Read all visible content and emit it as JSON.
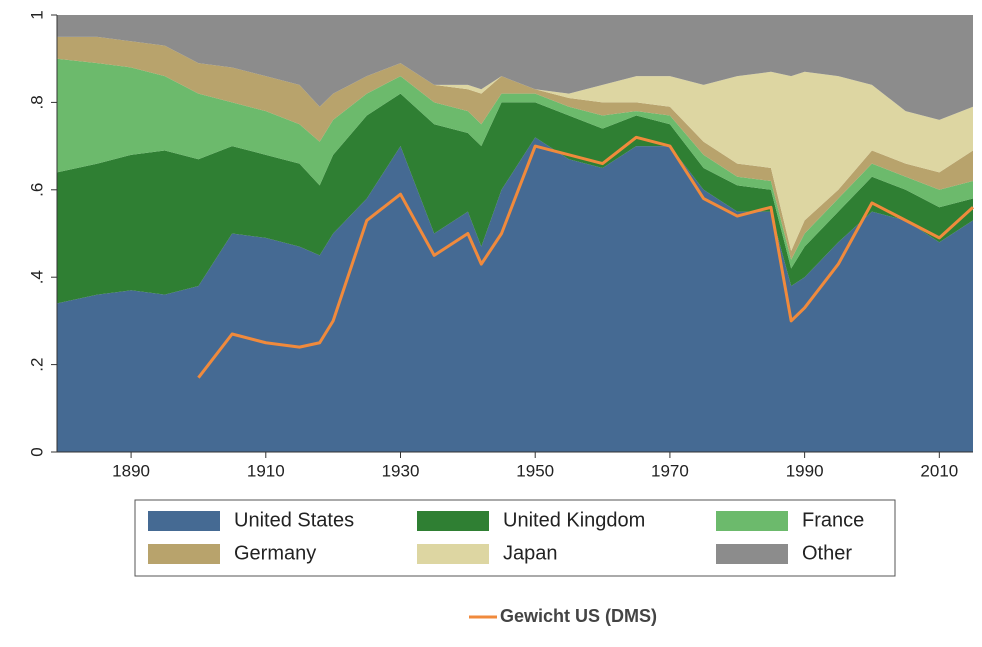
{
  "chart_data": {
    "type": "stacked-area",
    "x": [
      1879,
      1885,
      1890,
      1895,
      1900,
      1905,
      1910,
      1915,
      1918,
      1920,
      1925,
      1930,
      1935,
      1940,
      1942,
      1945,
      1950,
      1955,
      1960,
      1965,
      1970,
      1975,
      1980,
      1985,
      1988,
      1990,
      1995,
      2000,
      2005,
      2010,
      2015
    ],
    "xlim": [
      1879,
      2015
    ],
    "xticks": [
      1890,
      1910,
      1930,
      1950,
      1970,
      1990,
      2010
    ],
    "ylim": [
      0,
      1
    ],
    "yticks": [
      0,
      {
        "value": 0.2,
        "label": ".2"
      },
      {
        "value": 0.4,
        "label": ".4"
      },
      {
        "value": 0.6,
        "label": ".6"
      },
      {
        "value": 0.8,
        "label": ".8"
      },
      1
    ],
    "series": [
      {
        "name": "United States",
        "color": "#456a93",
        "values": [
          0.34,
          0.36,
          0.37,
          0.36,
          0.38,
          0.5,
          0.49,
          0.47,
          0.45,
          0.5,
          0.58,
          0.7,
          0.5,
          0.55,
          0.47,
          0.6,
          0.72,
          0.67,
          0.65,
          0.7,
          0.7,
          0.6,
          0.55,
          0.55,
          0.38,
          0.4,
          0.48,
          0.55,
          0.53,
          0.48,
          0.53
        ]
      },
      {
        "name": "United Kingdom",
        "color": "#2f7f33",
        "values": [
          0.3,
          0.3,
          0.31,
          0.33,
          0.29,
          0.2,
          0.19,
          0.19,
          0.16,
          0.18,
          0.19,
          0.12,
          0.25,
          0.18,
          0.23,
          0.2,
          0.08,
          0.1,
          0.09,
          0.07,
          0.05,
          0.05,
          0.06,
          0.05,
          0.04,
          0.07,
          0.07,
          0.08,
          0.07,
          0.08,
          0.05
        ]
      },
      {
        "name": "France",
        "color": "#6cba6c",
        "values": [
          0.26,
          0.23,
          0.2,
          0.17,
          0.15,
          0.1,
          0.1,
          0.09,
          0.1,
          0.08,
          0.05,
          0.04,
          0.05,
          0.05,
          0.05,
          0.02,
          0.02,
          0.02,
          0.03,
          0.01,
          0.02,
          0.03,
          0.02,
          0.02,
          0.02,
          0.03,
          0.03,
          0.03,
          0.03,
          0.04,
          0.04
        ]
      },
      {
        "name": "Germany",
        "color": "#b8a36c",
        "values": [
          0.05,
          0.06,
          0.06,
          0.07,
          0.07,
          0.08,
          0.08,
          0.09,
          0.08,
          0.06,
          0.04,
          0.03,
          0.04,
          0.05,
          0.07,
          0.04,
          0.01,
          0.02,
          0.03,
          0.02,
          0.02,
          0.03,
          0.03,
          0.03,
          0.02,
          0.03,
          0.02,
          0.03,
          0.03,
          0.04,
          0.07
        ]
      },
      {
        "name": "Japan",
        "color": "#ddd6a2",
        "values": [
          0,
          0,
          0,
          0,
          0,
          0,
          0,
          0,
          0,
          0,
          0,
          0,
          0,
          0.01,
          0.01,
          0,
          0,
          0.01,
          0.04,
          0.06,
          0.07,
          0.13,
          0.2,
          0.22,
          0.4,
          0.34,
          0.26,
          0.15,
          0.12,
          0.12,
          0.1
        ]
      },
      {
        "name": "Other",
        "color": "#8c8c8c",
        "values": [
          0.05,
          0.05,
          0.06,
          0.07,
          0.11,
          0.12,
          0.14,
          0.16,
          0.21,
          0.18,
          0.14,
          0.11,
          0.16,
          0.16,
          0.17,
          0.14,
          0.17,
          0.18,
          0.16,
          0.14,
          0.14,
          0.16,
          0.14,
          0.13,
          0.14,
          0.13,
          0.14,
          0.16,
          0.22,
          0.24,
          0.21
        ]
      }
    ],
    "line_series": [
      {
        "name": "Gewicht US (DMS)",
        "color": "#f08a3c",
        "values": [
          null,
          null,
          null,
          null,
          0.17,
          0.27,
          0.25,
          0.24,
          0.25,
          0.3,
          0.53,
          0.59,
          0.45,
          0.5,
          0.43,
          0.5,
          0.7,
          0.68,
          0.66,
          0.72,
          0.7,
          0.58,
          0.54,
          0.56,
          0.3,
          0.33,
          0.43,
          0.57,
          0.53,
          0.49,
          0.56
        ]
      }
    ]
  }
}
